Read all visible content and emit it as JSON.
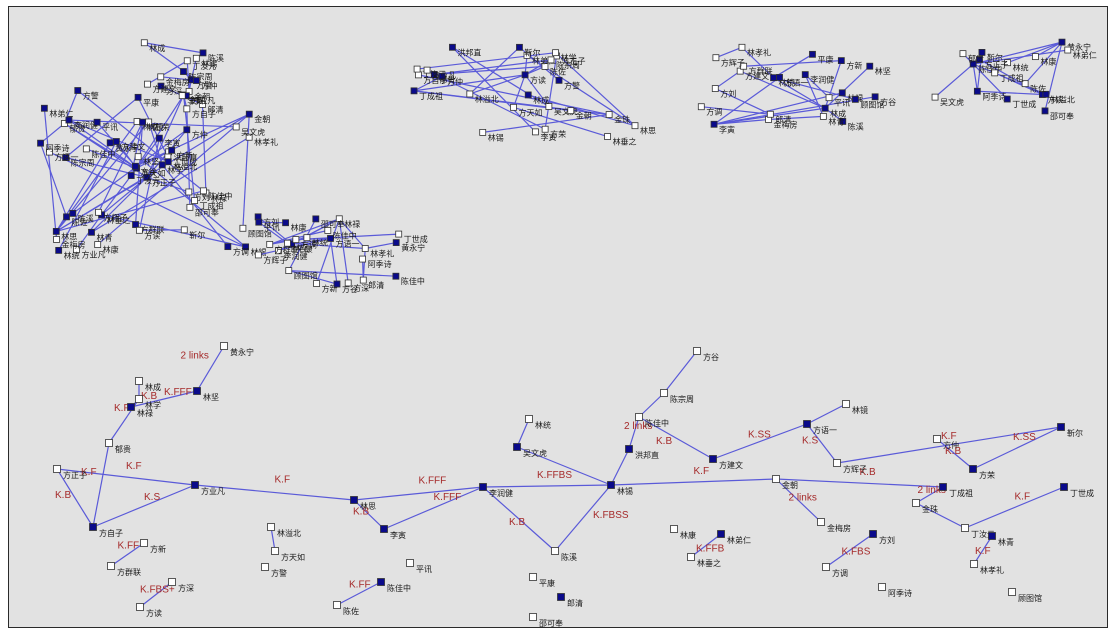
{
  "colors": {
    "background": "#e2e2e2",
    "edge": "#5a5ad8",
    "node_filled": "#0a0a8a",
    "node_empty": "#ffffff",
    "edge_label": "#a52a2a"
  },
  "nodes": [
    {
      "id": "n1",
      "label": "方正子",
      "filled": false
    },
    {
      "id": "n2",
      "label": "方自子",
      "filled": true
    },
    {
      "id": "n3",
      "label": "方业凡",
      "filled": true
    },
    {
      "id": "n4",
      "label": "方新",
      "filled": false
    },
    {
      "id": "n5",
      "label": "方群联",
      "filled": false
    },
    {
      "id": "n6",
      "label": "方深",
      "filled": false
    },
    {
      "id": "n7",
      "label": "方读",
      "filled": false
    },
    {
      "id": "n8",
      "label": "郁贵",
      "filled": false
    },
    {
      "id": "n9",
      "label": "林学",
      "filled": false
    },
    {
      "id": "n10",
      "label": "林成",
      "filled": false
    },
    {
      "id": "n11",
      "label": "林禄",
      "filled": true
    },
    {
      "id": "n12",
      "label": "林坚",
      "filled": true
    },
    {
      "id": "n13",
      "label": "黄永宁",
      "filled": false
    },
    {
      "id": "n14",
      "label": "林溢北",
      "filled": false
    },
    {
      "id": "n15",
      "label": "方天如",
      "filled": false
    },
    {
      "id": "n16",
      "label": "方警",
      "filled": false
    },
    {
      "id": "n17",
      "label": "李寅",
      "filled": true
    },
    {
      "id": "n18",
      "label": "李润健",
      "filled": true
    },
    {
      "id": "n19",
      "label": "平讯",
      "filled": false
    },
    {
      "id": "n20",
      "label": "陈佳中",
      "filled": true
    },
    {
      "id": "n21",
      "label": "陈佐",
      "filled": false
    },
    {
      "id": "n22",
      "label": "林思",
      "filled": true
    },
    {
      "id": "n23",
      "label": "林锡",
      "filled": true
    },
    {
      "id": "n24",
      "label": "陈溪",
      "filled": false
    },
    {
      "id": "n25",
      "label": "平康",
      "filled": false
    },
    {
      "id": "n26",
      "label": "郎清",
      "filled": true
    },
    {
      "id": "n27",
      "label": "邵可奉",
      "filled": false
    },
    {
      "id": "n28",
      "label": "吴文虎",
      "filled": true
    },
    {
      "id": "n29",
      "label": "洪邦直",
      "filled": true
    },
    {
      "id": "n30",
      "label": "陈宗周",
      "filled": false
    },
    {
      "id": "n31",
      "label": "方建文",
      "filled": true
    },
    {
      "id": "n32",
      "label": "方语一",
      "filled": true
    },
    {
      "id": "n33",
      "label": "方辉子",
      "filled": false
    },
    {
      "id": "n34",
      "label": "林康",
      "filled": false
    },
    {
      "id": "n35",
      "label": "林弟仁",
      "filled": true
    },
    {
      "id": "n36",
      "label": "林垂之",
      "filled": false
    },
    {
      "id": "n37",
      "label": "金朝",
      "filled": false
    },
    {
      "id": "n38",
      "label": "金梅房",
      "filled": false
    },
    {
      "id": "n39",
      "label": "方刘",
      "filled": true
    },
    {
      "id": "n40",
      "label": "方调",
      "filled": false
    },
    {
      "id": "n41",
      "label": "阿季诗",
      "filled": false
    },
    {
      "id": "n42",
      "label": "丁成祖",
      "filled": true
    },
    {
      "id": "n43",
      "label": "金珠",
      "filled": false
    },
    {
      "id": "n44",
      "label": "丁汝元",
      "filled": false
    },
    {
      "id": "n45",
      "label": "林青",
      "filled": true
    },
    {
      "id": "n46",
      "label": "林孝礼",
      "filled": false
    },
    {
      "id": "n47",
      "label": "顾图馆",
      "filled": false
    },
    {
      "id": "n48",
      "label": "丁世成",
      "filled": true
    },
    {
      "id": "n49",
      "label": "靳尔",
      "filled": true
    },
    {
      "id": "n50",
      "label": "方荣",
      "filled": true
    },
    {
      "id": "n51",
      "label": "方仲",
      "filled": false
    },
    {
      "id": "n52",
      "label": "林镜",
      "filled": false
    },
    {
      "id": "n53",
      "label": "方谷",
      "filled": false
    },
    {
      "id": "n54",
      "label": "陈佳中",
      "filled": false
    },
    {
      "id": "n55",
      "label": "林统",
      "filled": false
    }
  ],
  "edge_labels": [
    "K.F",
    "K.FF",
    "K.FFF",
    "K.FB",
    "K.B",
    "K.S",
    "K.SS",
    "K.FBS",
    "K.FFBS",
    "K.FBSS",
    "K.FBS+",
    "2 links",
    "K.FFB",
    "K.FBB"
  ]
}
